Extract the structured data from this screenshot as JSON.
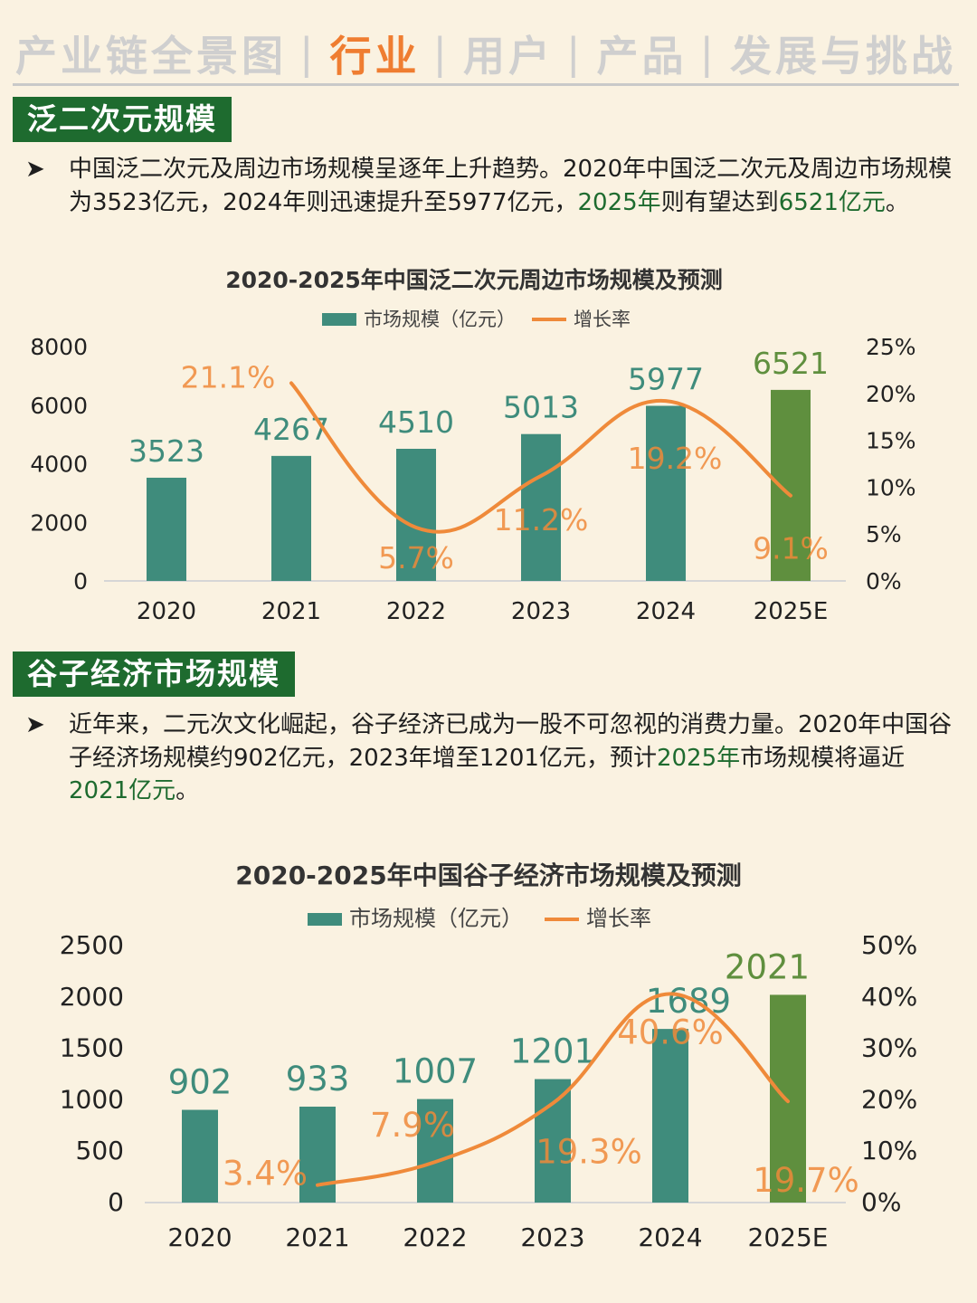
{
  "nav": {
    "items": [
      "产业链全景图",
      "行业",
      "用户",
      "产品",
      "发展与挑战"
    ],
    "active_index": 1,
    "separator": "|"
  },
  "section1": {
    "title": "泛二次元规模",
    "bullet": "➤",
    "text_parts": [
      {
        "text": "中国泛二次元及周边市场规模呈逐年上升趋势。2020年中国泛二次元及周边市场规模为3523亿元，2024年则迅速提升至5977亿元，",
        "hl": false
      },
      {
        "text": "2025年",
        "hl": true
      },
      {
        "text": "则有望达到",
        "hl": false
      },
      {
        "text": "6521亿元",
        "hl": true
      },
      {
        "text": "。",
        "hl": false
      }
    ]
  },
  "section2": {
    "title": "谷子经济市场规模",
    "bullet": "➤",
    "text_parts": [
      {
        "text": "近年来，二元次文化崛起，谷子经济已成为一股不可忽视的消费力量。2020年中国谷子经济场规模约902亿元，2023年增至1201亿元，预计",
        "hl": false
      },
      {
        "text": "2025年",
        "hl": true
      },
      {
        "text": "市场规模将逼近",
        "hl": false
      },
      {
        "text": "2021亿元",
        "hl": true
      },
      {
        "text": "。",
        "hl": false
      }
    ]
  },
  "colors": {
    "bar": "#3f8c7c",
    "bar_forecast": "#5f8f3e",
    "line": "#ef8a3a",
    "highlight": "#1e6b2f",
    "nav_active": "#ef7d31"
  },
  "chart_data": [
    {
      "type": "bar",
      "title": "2020-2025年中国泛二次元周边市场规模及预测",
      "categories": [
        "2020",
        "2021",
        "2022",
        "2023",
        "2024",
        "2025E"
      ],
      "series": [
        {
          "name": "市场规模（亿元）",
          "type": "bar",
          "axis": "left",
          "values": [
            3523,
            4267,
            4510,
            5013,
            5977,
            6521
          ]
        },
        {
          "name": "增长率",
          "type": "line",
          "axis": "right",
          "values": [
            null,
            21.1,
            5.7,
            11.2,
            19.2,
            9.1
          ]
        }
      ],
      "value_labels": [
        "3523",
        "4267",
        "4510",
        "5013",
        "5977",
        "6521"
      ],
      "rate_labels": [
        "",
        "21.1%",
        "5.7%",
        "11.2%",
        "19.2%",
        "9.1%"
      ],
      "ylim_left": [
        0,
        8000
      ],
      "ylim_right": [
        0,
        25
      ],
      "yticks_left": [
        "0",
        "2000",
        "4000",
        "6000",
        "8000"
      ],
      "yticks_right": [
        "0%",
        "5%",
        "10%",
        "15%",
        "20%",
        "25%"
      ],
      "legend": "top-center",
      "grid": false
    },
    {
      "type": "bar",
      "title": "2020-2025年中国谷子经济市场规模及预测",
      "categories": [
        "2020",
        "2021",
        "2022",
        "2023",
        "2024",
        "2025E"
      ],
      "series": [
        {
          "name": "市场规模（亿元）",
          "type": "bar",
          "axis": "left",
          "values": [
            902,
            933,
            1007,
            1201,
            1689,
            2021
          ]
        },
        {
          "name": "增长率",
          "type": "line",
          "axis": "right",
          "values": [
            null,
            3.4,
            7.9,
            19.3,
            40.6,
            19.7
          ]
        }
      ],
      "value_labels": [
        "902",
        "933",
        "1007",
        "1201",
        "1689",
        "2021"
      ],
      "rate_labels": [
        "",
        "3.4%",
        "7.9%",
        "19.3%",
        "40.6%",
        "19.7%"
      ],
      "ylim_left": [
        0,
        2500
      ],
      "ylim_right": [
        0,
        50
      ],
      "yticks_left": [
        "0",
        "500",
        "1000",
        "1500",
        "2000",
        "2500"
      ],
      "yticks_right": [
        "0%",
        "10%",
        "20%",
        "30%",
        "40%",
        "50%"
      ],
      "legend": "top-center",
      "grid": false
    }
  ]
}
